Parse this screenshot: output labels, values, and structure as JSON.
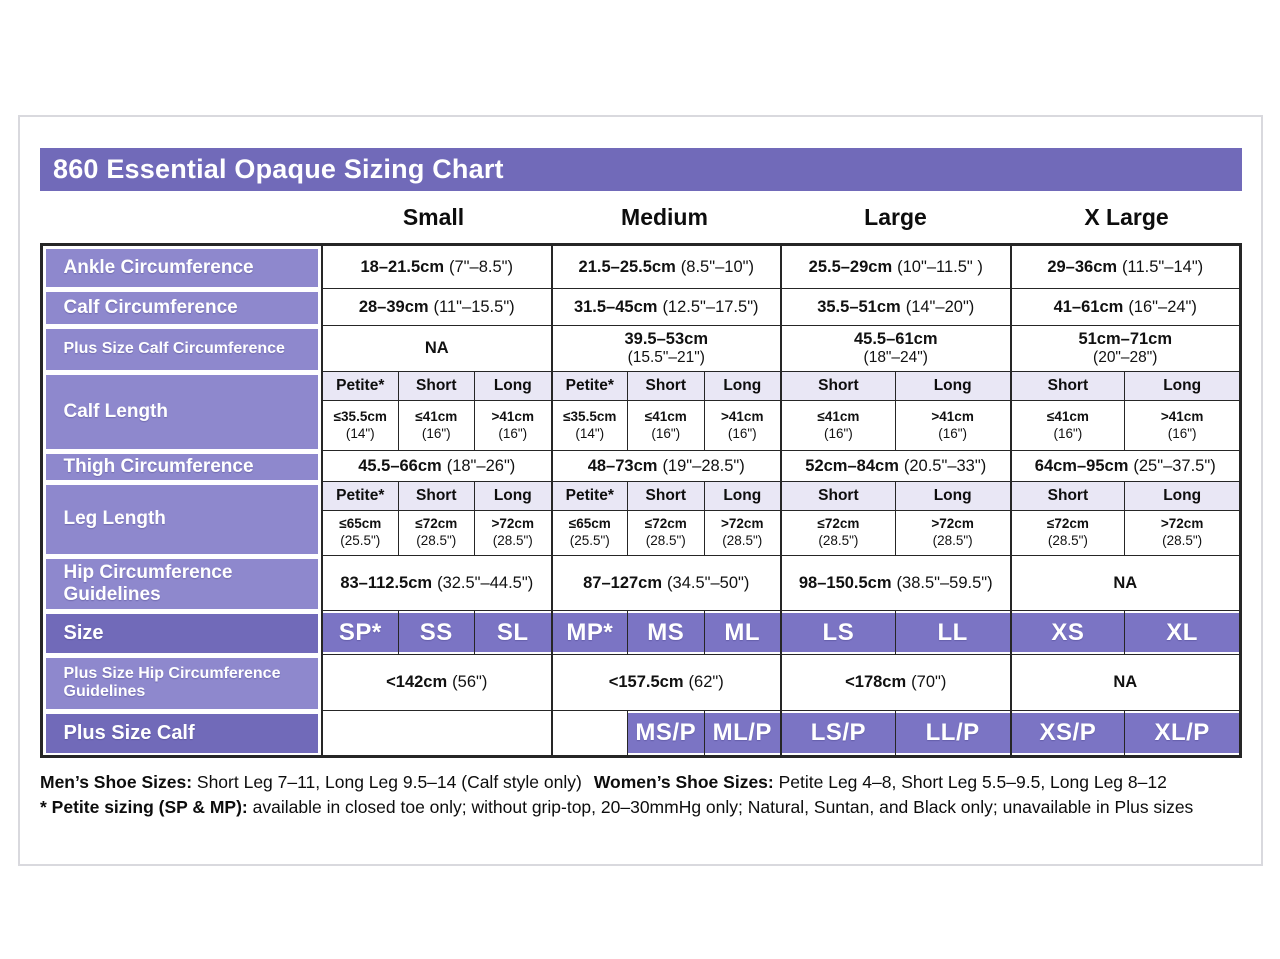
{
  "title": "860 Essential Opaque Sizing Chart",
  "col_headers": [
    "Small",
    "Medium",
    "Large",
    "X Large"
  ],
  "table": {
    "ankle": {
      "label": "Ankle Circumference",
      "cells": [
        {
          "b": "18–21.5cm",
          "r": "(7\"–8.5\")"
        },
        {
          "b": "21.5–25.5cm",
          "r": "(8.5\"–10\")"
        },
        {
          "b": "25.5–29cm",
          "r": "(10\"–11.5\" )"
        },
        {
          "b": "29–36cm",
          "r": "(11.5\"–14\")"
        }
      ]
    },
    "calf_circ": {
      "label": "Calf Circumference",
      "cells": [
        {
          "b": "28–39cm",
          "r": "(11\"–15.5\")"
        },
        {
          "b": "31.5–45cm",
          "r": "(12.5\"–17.5\")"
        },
        {
          "b": "35.5–51cm",
          "r": "(14\"–20\")"
        },
        {
          "b": "41–61cm",
          "r": "(16\"–24\")"
        }
      ]
    },
    "plus_calf_circ": {
      "label": "Plus Size Calf Circumference",
      "cells": [
        {
          "b": "NA",
          "r": ""
        },
        {
          "b": "39.5–53cm",
          "r": "(15.5\"–21\")"
        },
        {
          "b": "45.5–61cm",
          "r": "(18\"–24\")"
        },
        {
          "b": "51cm–71cm",
          "r": "(20\"–28\")"
        }
      ]
    },
    "calf_length": {
      "label": "Calf Length",
      "headers": [
        "Petite*",
        "Short",
        "Long",
        "Petite*",
        "Short",
        "Long",
        "Short",
        "Long",
        "Short",
        "Long"
      ],
      "cells": [
        {
          "b": "≤35.5cm",
          "r": "(14\")"
        },
        {
          "b": "≤41cm",
          "r": "(16\")"
        },
        {
          "b": ">41cm",
          "r": "(16\")"
        },
        {
          "b": "≤35.5cm",
          "r": "(14\")"
        },
        {
          "b": "≤41cm",
          "r": "(16\")"
        },
        {
          "b": ">41cm",
          "r": "(16\")"
        },
        {
          "b": "≤41cm",
          "r": "(16\")"
        },
        {
          "b": ">41cm",
          "r": "(16\")"
        },
        {
          "b": "≤41cm",
          "r": "(16\")"
        },
        {
          "b": ">41cm",
          "r": "(16\")"
        }
      ]
    },
    "thigh": {
      "label": "Thigh Circumference",
      "cells": [
        {
          "b": "45.5–66cm",
          "r": "(18\"–26\")"
        },
        {
          "b": "48–73cm",
          "r": "(19\"–28.5\")"
        },
        {
          "b": "52cm–84cm",
          "r": "(20.5\"–33\")"
        },
        {
          "b": "64cm–95cm",
          "r": "(25\"–37.5\")"
        }
      ]
    },
    "leg_length": {
      "label": "Leg Length",
      "headers": [
        "Petite*",
        "Short",
        "Long",
        "Petite*",
        "Short",
        "Long",
        "Short",
        "Long",
        "Short",
        "Long"
      ],
      "cells": [
        {
          "b": "≤65cm",
          "r": "(25.5\")"
        },
        {
          "b": "≤72cm",
          "r": "(28.5\")"
        },
        {
          "b": ">72cm",
          "r": "(28.5\")"
        },
        {
          "b": "≤65cm",
          "r": "(25.5\")"
        },
        {
          "b": "≤72cm",
          "r": "(28.5\")"
        },
        {
          "b": ">72cm",
          "r": "(28.5\")"
        },
        {
          "b": "≤72cm",
          "r": "(28.5\")"
        },
        {
          "b": ">72cm",
          "r": "(28.5\")"
        },
        {
          "b": "≤72cm",
          "r": "(28.5\")"
        },
        {
          "b": ">72cm",
          "r": "(28.5\")"
        }
      ]
    },
    "hip": {
      "label": "Hip Circumference Guidelines",
      "cells": [
        {
          "b": "83–112.5cm",
          "r": "(32.5\"–44.5\")"
        },
        {
          "b": "87–127cm",
          "r": "(34.5\"–50\")"
        },
        {
          "b": "98–150.5cm",
          "r": "(38.5\"–59.5\")"
        },
        {
          "b": "NA",
          "r": ""
        }
      ]
    },
    "size": {
      "label": "Size",
      "cells": [
        "SP*",
        "SS",
        "SL",
        "MP*",
        "MS",
        "ML",
        "LS",
        "LL",
        "XS",
        "XL"
      ]
    },
    "plus_hip": {
      "label": "Plus Size Hip Circumference Guidelines",
      "cells": [
        {
          "b": "<142cm",
          "r": "(56\")"
        },
        {
          "b": "<157.5cm",
          "r": "(62\")"
        },
        {
          "b": "<178cm",
          "r": "(70\")"
        },
        {
          "b": "NA",
          "r": ""
        }
      ]
    },
    "plus_calf": {
      "label": "Plus Size Calf",
      "cells": [
        "MS/P",
        "ML/P",
        "LS/P",
        "LL/P",
        "XS/P",
        "XL/P"
      ]
    }
  },
  "footer": {
    "line1_b1": "Men’s Shoe Sizes:",
    "line1_t1": " Short Leg 7–11, Long Leg 9.5–14 (Calf style only)",
    "line1_b2": "Women’s Shoe Sizes:",
    "line1_t2": " Petite Leg 4–8,  Short Leg 5.5–9.5, Long Leg 8–12",
    "line2_b": "* Petite sizing (SP & MP):",
    "line2_t": " available in closed toe only; without grip-top, 20–30mmHg only; Natural, Suntan, and Black only; unavailable in Plus sizes"
  },
  "colors": {
    "header_purple": "#716ab9",
    "cell_purple": "#7b74c4",
    "label_purple": "#8e88cd",
    "lavender": "#e9e7f5",
    "border": "#262626"
  }
}
